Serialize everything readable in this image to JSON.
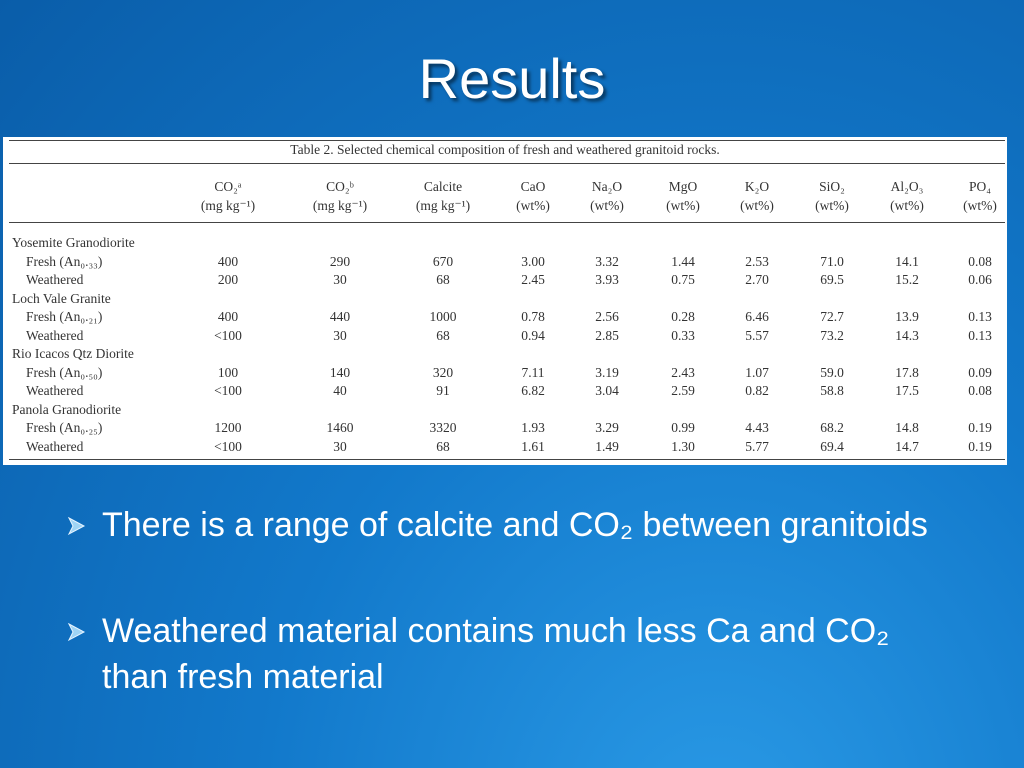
{
  "title": "Results",
  "table": {
    "caption": "Table 2.  Selected chemical composition of fresh and weathered granitoid rocks.",
    "columns": [
      {
        "name": "CO₂ᵃ",
        "unit": "(mg kg⁻¹)"
      },
      {
        "name": "CO₂ᵇ",
        "unit": "(mg kg⁻¹)"
      },
      {
        "name": "Calcite",
        "unit": "(mg kg⁻¹)"
      },
      {
        "name": "CaO",
        "unit": "(wt%)"
      },
      {
        "name": "Na₂O",
        "unit": "(wt%)"
      },
      {
        "name": "MgO",
        "unit": "(wt%)"
      },
      {
        "name": "K₂O",
        "unit": "(wt%)"
      },
      {
        "name": "SiO₂",
        "unit": "(wt%)"
      },
      {
        "name": "Al₂O₃",
        "unit": "(wt%)"
      },
      {
        "name": "PO₄",
        "unit": "(wt%)"
      }
    ],
    "groups": [
      {
        "name": "Yosemite Granodiorite",
        "rows": [
          {
            "label": "Fresh (An₀.₃₃)",
            "cells": [
              "400",
              "290",
              "670",
              "3.00",
              "3.32",
              "1.44",
              "2.53",
              "71.0",
              "14.1",
              "0.08"
            ]
          },
          {
            "label": "Weathered",
            "cells": [
              "200",
              "30",
              "68",
              "2.45",
              "3.93",
              "0.75",
              "2.70",
              "69.5",
              "15.2",
              "0.06"
            ]
          }
        ]
      },
      {
        "name": "Loch Vale Granite",
        "rows": [
          {
            "label": "Fresh (An₀.₂₁)",
            "cells": [
              "400",
              "440",
              "1000",
              "0.78",
              "2.56",
              "0.28",
              "6.46",
              "72.7",
              "13.9",
              "0.13"
            ]
          },
          {
            "label": "Weathered",
            "cells": [
              "<100",
              "30",
              "68",
              "0.94",
              "2.85",
              "0.33",
              "5.57",
              "73.2",
              "14.3",
              "0.13"
            ]
          }
        ]
      },
      {
        "name": "Rio Icacos Qtz Diorite",
        "rows": [
          {
            "label": "Fresh (An₀.₅₀)",
            "cells": [
              "100",
              "140",
              "320",
              "7.11",
              "3.19",
              "2.43",
              "1.07",
              "59.0",
              "17.8",
              "0.09"
            ]
          },
          {
            "label": "Weathered",
            "cells": [
              "<100",
              "40",
              "91",
              "6.82",
              "3.04",
              "2.59",
              "0.82",
              "58.8",
              "17.5",
              "0.08"
            ]
          }
        ]
      },
      {
        "name": "Panola Granodiorite",
        "rows": [
          {
            "label": "Fresh (An₀.₂₅)",
            "cells": [
              "1200",
              "1460",
              "3320",
              "1.93",
              "3.29",
              "0.99",
              "4.43",
              "68.2",
              "14.8",
              "0.19"
            ]
          },
          {
            "label": "Weathered",
            "cells": [
              "<100",
              "30",
              "68",
              "1.61",
              "1.49",
              "1.30",
              "5.77",
              "69.4",
              "14.7",
              "0.19"
            ]
          }
        ]
      }
    ]
  },
  "bullets": [
    "There is a range of calcite and CO₂ between granitoids",
    "Weathered material contains much less Ca and CO₂ than fresh material"
  ]
}
